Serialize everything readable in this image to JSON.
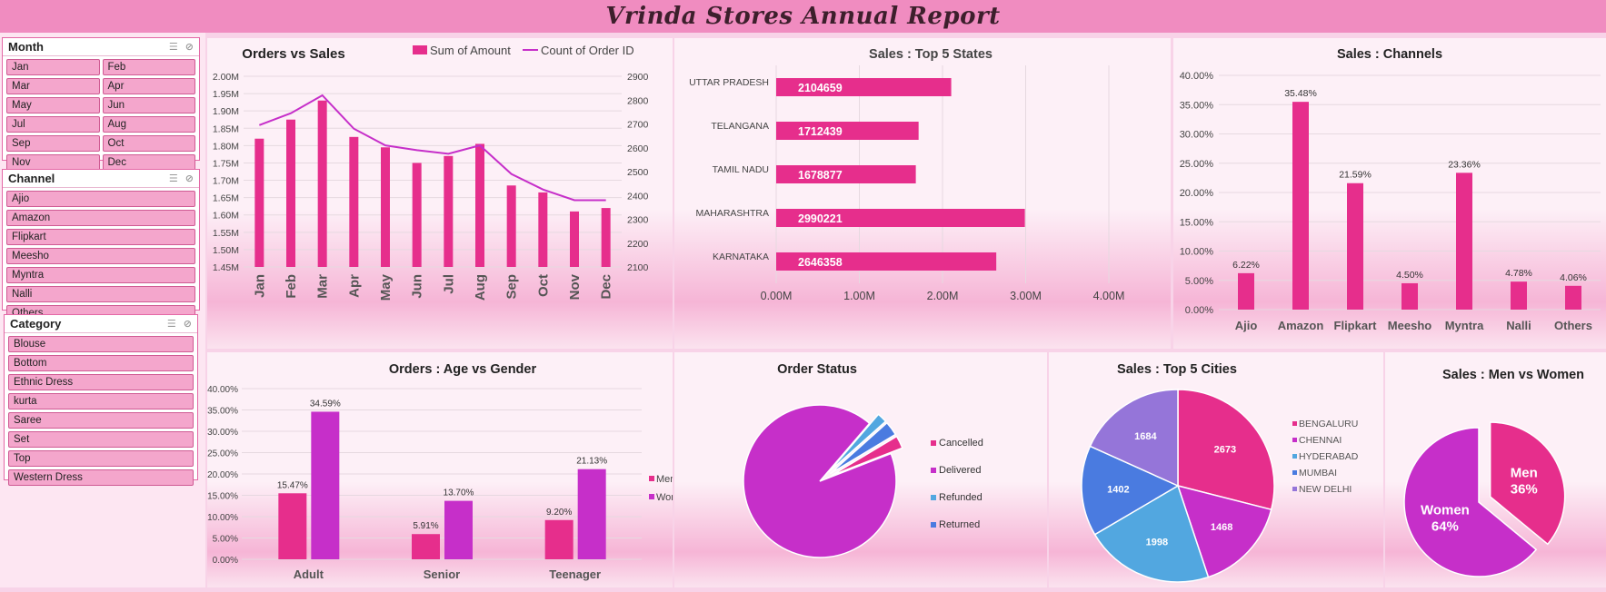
{
  "header": {
    "title": "Vrinda Stores Annual Report"
  },
  "slicers": {
    "month": {
      "title": "Month",
      "items": [
        "Jan",
        "Feb",
        "Mar",
        "Apr",
        "May",
        "Jun",
        "Jul",
        "Aug",
        "Sep",
        "Oct",
        "Nov",
        "Dec"
      ]
    },
    "channel": {
      "title": "Channel",
      "items": [
        "Ajio",
        "Amazon",
        "Flipkart",
        "Meesho",
        "Myntra",
        "Nalli",
        "Others"
      ]
    },
    "category": {
      "title": "Category",
      "items": [
        "Blouse",
        "Bottom",
        "Ethnic Dress",
        "kurta",
        "Saree",
        "Set",
        "Top",
        "Western Dress"
      ]
    }
  },
  "colors": {
    "pink": "#e62e8c",
    "magenta": "#c62fc9",
    "blue": "#4a7be0",
    "skyblue": "#52a7e0",
    "lavender": "#9575d9",
    "title_bar": "#f08cc0"
  },
  "chart_data": [
    {
      "id": "orders-vs-sales",
      "type": "bar",
      "title": "Orders vs Sales",
      "categories": [
        "Jan",
        "Feb",
        "Mar",
        "Apr",
        "May",
        "Jun",
        "Jul",
        "Aug",
        "Sep",
        "Oct",
        "Nov",
        "Dec"
      ],
      "series": [
        {
          "name": "Sum of Amount",
          "type": "bar",
          "axis": "left",
          "values": [
            1.82,
            1.875,
            1.93,
            1.825,
            1.795,
            1.75,
            1.77,
            1.805,
            1.685,
            1.665,
            1.61,
            1.62
          ]
        },
        {
          "name": "Count of Order ID",
          "type": "line",
          "axis": "right",
          "values": [
            2695,
            2745,
            2820,
            2680,
            2610,
            2590,
            2575,
            2610,
            2490,
            2425,
            2380,
            2380
          ]
        }
      ],
      "ylim": [
        1.45,
        2.0
      ],
      "y_ticks": [
        "1.45M",
        "1.50M",
        "1.55M",
        "1.60M",
        "1.65M",
        "1.70M",
        "1.75M",
        "1.80M",
        "1.85M",
        "1.90M",
        "1.95M",
        "2.00M"
      ],
      "y2lim": [
        2100,
        2900
      ],
      "y2_ticks": [
        "2100",
        "2200",
        "2300",
        "2400",
        "2500",
        "2600",
        "2700",
        "2800",
        "2900"
      ],
      "legend": "top"
    },
    {
      "id": "top-states",
      "type": "bar",
      "orientation": "horizontal",
      "title": "Sales : Top 5 States",
      "categories": [
        "UTTAR PRADESH",
        "TELANGANA",
        "TAMIL NADU",
        "MAHARASHTRA",
        "KARNATAKA"
      ],
      "values": [
        2104659,
        1712439,
        1678877,
        2990221,
        2646358
      ],
      "data_labels": [
        "2104659",
        "1712439",
        "1678877",
        "2990221",
        "2646358"
      ],
      "xlim": [
        0,
        4000000
      ],
      "x_ticks": [
        "0.00M",
        "1.00M",
        "2.00M",
        "3.00M",
        "4.00M"
      ]
    },
    {
      "id": "sales-channels",
      "type": "bar",
      "title": "Sales : Channels",
      "categories": [
        "Ajio",
        "Amazon",
        "Flipkart",
        "Meesho",
        "Myntra",
        "Nalli",
        "Others"
      ],
      "values": [
        6.22,
        35.48,
        21.59,
        4.5,
        23.36,
        4.78,
        4.06
      ],
      "data_labels": [
        "6.22%",
        "35.48%",
        "21.59%",
        "4.50%",
        "23.36%",
        "4.78%",
        "4.06%"
      ],
      "ylim": [
        0,
        40
      ],
      "y_ticks": [
        "0.00%",
        "5.00%",
        "10.00%",
        "15.00%",
        "20.00%",
        "25.00%",
        "30.00%",
        "35.00%",
        "40.00%"
      ]
    },
    {
      "id": "age-gender",
      "type": "bar",
      "title": "Orders : Age vs Gender",
      "categories": [
        "Adult",
        "Senior",
        "Teenager"
      ],
      "series": [
        {
          "name": "Men",
          "values": [
            15.47,
            5.91,
            9.2
          ],
          "labels": [
            "15.47%",
            "5.91%",
            "9.20%"
          ]
        },
        {
          "name": "Women",
          "values": [
            34.59,
            13.7,
            21.13
          ],
          "labels": [
            "34.59%",
            "13.70%",
            "21.13%"
          ]
        }
      ],
      "ylim": [
        0,
        40
      ],
      "y_ticks": [
        "0.00%",
        "5.00%",
        "10.00%",
        "15.00%",
        "20.00%",
        "25.00%",
        "30.00%",
        "35.00%",
        "40.00%"
      ],
      "legend": "right"
    },
    {
      "id": "order-status",
      "type": "pie",
      "title": "Order Status",
      "categories": [
        "Cancelled",
        "Delivered",
        "Refunded",
        "Returned"
      ],
      "values": [
        2.7,
        92.2,
        2.1,
        3.0
      ],
      "legend": "right"
    },
    {
      "id": "top-cities",
      "type": "pie",
      "title": "Sales : Top 5 Cities",
      "categories": [
        "BENGALURU",
        "CHENNAI",
        "HYDERABAD",
        "MUMBAI",
        "NEW DELHI"
      ],
      "values": [
        2673,
        1468,
        1998,
        1402,
        1684
      ],
      "data_labels": [
        "2673",
        "1468",
        "1998",
        "1402",
        "1684"
      ],
      "legend": "right"
    },
    {
      "id": "men-women",
      "type": "pie",
      "title": "Sales : Men vs Women",
      "categories": [
        "Men",
        "Women"
      ],
      "values": [
        36,
        64
      ],
      "data_labels": [
        "36%",
        "64%"
      ]
    }
  ]
}
